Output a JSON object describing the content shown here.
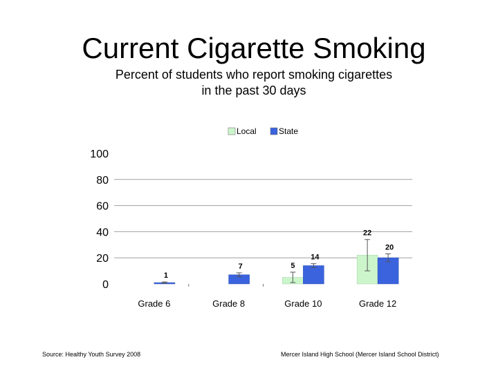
{
  "slide": {
    "title": "Current Cigarette Smoking",
    "subtitle": "Percent of students who report smoking cigarettes\nin the past 30 days",
    "source": "Source: Healthy Youth Survey 2008",
    "school": "Mercer Island High School (Mercer Island School District)"
  },
  "colors": {
    "local": "#ccf5cc",
    "state": "#3a63dd",
    "grid": "#a0a0a0"
  },
  "chart_data": {
    "type": "bar",
    "categories": [
      "Grade 6",
      "Grade 8",
      "Grade 10",
      "Grade 12"
    ],
    "series": [
      {
        "name": "Local",
        "values": [
          null,
          null,
          5,
          22
        ],
        "error": [
          null,
          null,
          4,
          12
        ]
      },
      {
        "name": "State",
        "values": [
          1,
          7,
          14,
          20
        ],
        "error": [
          0.5,
          1.5,
          1.5,
          3
        ]
      }
    ],
    "data_labels": {
      "Local": [
        "",
        "",
        "5",
        "22"
      ],
      "State": [
        "1",
        "7",
        "14",
        "20"
      ]
    },
    "yticks": [
      0,
      20,
      40,
      60,
      80,
      100
    ],
    "ylim": [
      0,
      100
    ],
    "legend": "top",
    "grid": true
  }
}
